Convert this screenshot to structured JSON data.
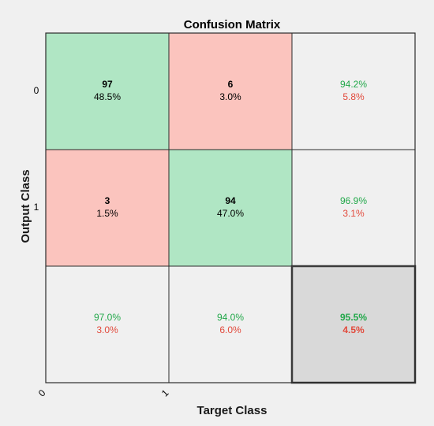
{
  "chart_data": {
    "type": "heatmap",
    "title": "Confusion Matrix",
    "xlabel": "Target Class",
    "ylabel": "Output Class",
    "x_ticks": [
      "0",
      "1"
    ],
    "y_ticks": [
      "0",
      "1"
    ],
    "cells": [
      [
        {
          "count": "97",
          "percent": "48.5%"
        },
        {
          "count": "6",
          "percent": "3.0%"
        }
      ],
      [
        {
          "count": "3",
          "percent": "1.5%"
        },
        {
          "count": "94",
          "percent": "47.0%"
        }
      ]
    ],
    "row_summary": [
      {
        "correct": "94.2%",
        "incorrect": "5.8%"
      },
      {
        "correct": "96.9%",
        "incorrect": "3.1%"
      }
    ],
    "col_summary": [
      {
        "correct": "97.0%",
        "incorrect": "3.0%"
      },
      {
        "correct": "94.0%",
        "incorrect": "6.0%"
      }
    ],
    "overall": {
      "correct": "95.5%",
      "incorrect": "4.5%"
    },
    "colors": {
      "diagonal": "#b0e6c4",
      "off_diagonal": "#fbc4be",
      "summary": "#f0f0f0",
      "overall": "#d9d9d9",
      "correct_text": "#22a84a",
      "incorrect_text": "#e24a3c"
    }
  }
}
